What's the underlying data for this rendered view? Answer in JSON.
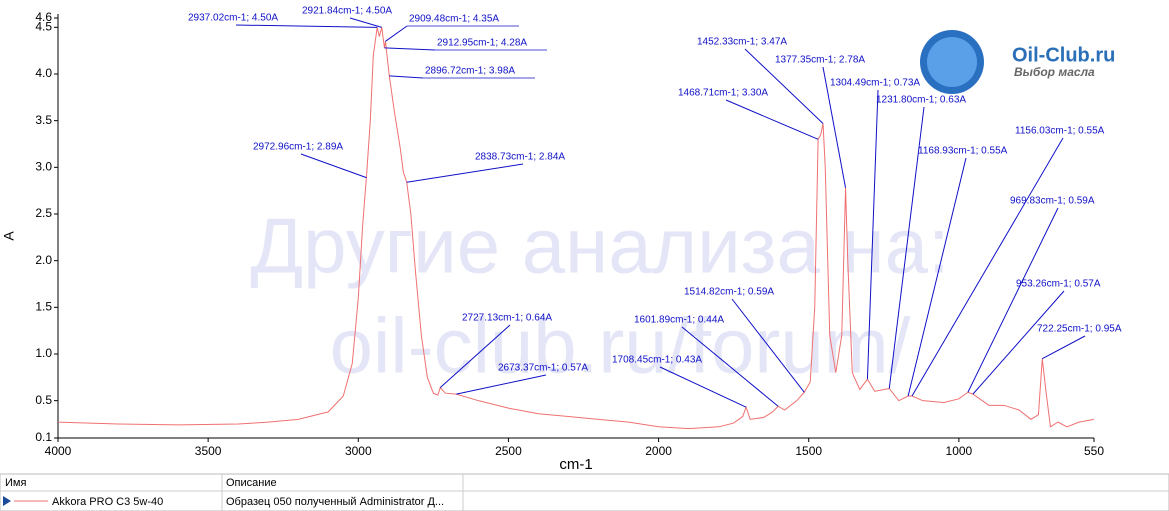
{
  "chart_data": {
    "type": "line",
    "xlabel": "cm-1",
    "ylabel": "A",
    "xlim": [
      4000,
      550
    ],
    "ylim": [
      0.1,
      4.6
    ],
    "xticks": [
      4000,
      3500,
      3000,
      2500,
      2000,
      1500,
      1000,
      550
    ],
    "yticks": [
      4.6,
      4.5,
      {
        "value": 4,
        "label": "4.0"
      },
      3.5,
      {
        "value": 3,
        "label": "3.0"
      },
      2.5,
      {
        "value": 2,
        "label": "2.0"
      },
      1.5,
      {
        "value": 1,
        "label": "1.0"
      },
      0.5,
      0.1
    ],
    "x": [
      4000,
      3800,
      3600,
      3400,
      3300,
      3200,
      3100,
      3050,
      3020,
      3000,
      2985,
      2972.96,
      2960,
      2950,
      2937.02,
      2930,
      2921.84,
      2912.95,
      2909.48,
      2896.72,
      2880,
      2860,
      2850,
      2838.73,
      2825,
      2810,
      2790,
      2770,
      2750,
      2735,
      2727.13,
      2710,
      2673.37,
      2600,
      2500,
      2400,
      2300,
      2200,
      2100,
      2000,
      1900,
      1800,
      1750,
      1720,
      1708.45,
      1695,
      1650,
      1620,
      1601.89,
      1580,
      1540,
      1514.82,
      1495,
      1480,
      1468.71,
      1460,
      1452.33,
      1445,
      1430,
      1410,
      1390,
      1377.35,
      1370,
      1355,
      1330,
      1304.49,
      1280,
      1250,
      1231.8,
      1200,
      1168.93,
      1156.03,
      1120,
      1050,
      1000,
      969.83,
      953.26,
      900,
      850,
      800,
      760,
      735,
      722.25,
      710,
      695,
      670,
      640,
      600,
      550
    ],
    "series": [
      {
        "name": "Akkora PRO C3 5w-40",
        "color": "#f07070",
        "values": [
          0.27,
          0.25,
          0.24,
          0.25,
          0.27,
          0.3,
          0.38,
          0.55,
          0.9,
          1.6,
          2.4,
          2.89,
          3.5,
          4.2,
          4.5,
          4.4,
          4.5,
          4.28,
          4.35,
          3.98,
          3.6,
          3.2,
          2.95,
          2.84,
          2.5,
          1.9,
          1.2,
          0.75,
          0.58,
          0.56,
          0.64,
          0.58,
          0.57,
          0.5,
          0.42,
          0.36,
          0.33,
          0.3,
          0.27,
          0.22,
          0.2,
          0.22,
          0.26,
          0.33,
          0.43,
          0.3,
          0.32,
          0.38,
          0.44,
          0.4,
          0.5,
          0.59,
          0.7,
          1.5,
          3.3,
          3.35,
          3.47,
          3.0,
          1.2,
          0.8,
          1.2,
          2.78,
          2.0,
          0.8,
          0.62,
          0.73,
          0.6,
          0.62,
          0.63,
          0.5,
          0.55,
          0.55,
          0.5,
          0.48,
          0.52,
          0.59,
          0.57,
          0.45,
          0.45,
          0.4,
          0.3,
          0.35,
          0.95,
          0.6,
          0.22,
          0.27,
          0.22,
          0.27,
          0.3
        ]
      }
    ],
    "annotations": [
      {
        "text": "2937.02cm-1; 4.50A",
        "x": 2937.02,
        "y": 4.5
      },
      {
        "text": "2921.84cm-1; 4.50A",
        "x": 2921.84,
        "y": 4.5
      },
      {
        "text": "2909.48cm-1; 4.35A",
        "x": 2909.48,
        "y": 4.35
      },
      {
        "text": "2912.95cm-1; 4.28A",
        "x": 2912.95,
        "y": 4.28
      },
      {
        "text": "2896.72cm-1; 3.98A",
        "x": 2896.72,
        "y": 3.98
      },
      {
        "text": "2972.96cm-1; 2.89A",
        "x": 2972.96,
        "y": 2.89
      },
      {
        "text": "2838.73cm-1; 2.84A",
        "x": 2838.73,
        "y": 2.84
      },
      {
        "text": "2727.13cm-1; 0.64A",
        "x": 2727.13,
        "y": 0.64
      },
      {
        "text": "2673.37cm-1; 0.57A",
        "x": 2673.37,
        "y": 0.57
      },
      {
        "text": "1708.45cm-1; 0.43A",
        "x": 1708.45,
        "y": 0.43
      },
      {
        "text": "1601.89cm-1; 0.44A",
        "x": 1601.89,
        "y": 0.44
      },
      {
        "text": "1514.82cm-1; 0.59A",
        "x": 1514.82,
        "y": 0.59
      },
      {
        "text": "1468.71cm-1; 3.30A",
        "x": 1468.71,
        "y": 3.3
      },
      {
        "text": "1452.33cm-1; 3.47A",
        "x": 1452.33,
        "y": 3.47
      },
      {
        "text": "1377.35cm-1; 2.78A",
        "x": 1377.35,
        "y": 2.78
      },
      {
        "text": "1304.49cm-1; 0.73A",
        "x": 1304.49,
        "y": 0.73
      },
      {
        "text": "1231.80cm-1; 0.63A",
        "x": 1231.8,
        "y": 0.63
      },
      {
        "text": "1168.93cm-1; 0.55A",
        "x": 1168.93,
        "y": 0.55
      },
      {
        "text": "1156.03cm-1; 0.55A",
        "x": 1156.03,
        "y": 0.55
      },
      {
        "text": "969.83cm-1; 0.59A",
        "x": 969.83,
        "y": 0.59
      },
      {
        "text": "953.26cm-1; 0.57A",
        "x": 953.26,
        "y": 0.57
      },
      {
        "text": "722.25cm-1; 0.95A",
        "x": 722.25,
        "y": 0.95
      }
    ],
    "watermark": [
      "Другие анализа на:",
      "oil-club.ru/forum/"
    ]
  },
  "logo": {
    "title": "Oil-Club.ru",
    "subtitle": "Выбор масла"
  },
  "table": {
    "headers": [
      "Имя",
      "Описание"
    ],
    "description": "Образец 050 полученный Administrator Д..."
  }
}
